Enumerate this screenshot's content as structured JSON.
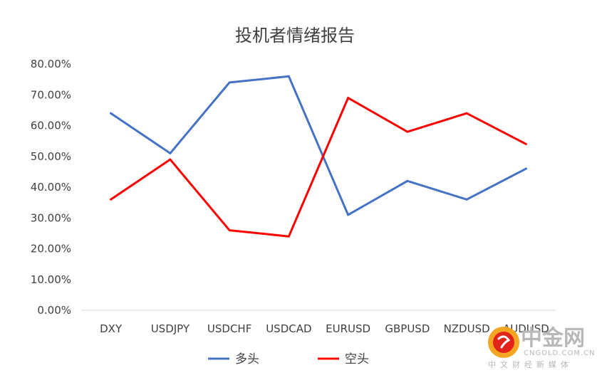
{
  "chart_data": {
    "type": "line",
    "title": "投机者情绪报告",
    "categories": [
      "DXY",
      "USDJPY",
      "USDCHF",
      "USDCAD",
      "EURUSD",
      "GBPUSD",
      "NZDUSD",
      "AUDUSD"
    ],
    "series": [
      {
        "name": "多头",
        "color": "#4472c4",
        "values": [
          64,
          51,
          74,
          76,
          31,
          42,
          36,
          46
        ]
      },
      {
        "name": "空头",
        "color": "#ff0000",
        "values": [
          36,
          49,
          26,
          24,
          69,
          58,
          64,
          54
        ]
      }
    ],
    "ylim": [
      0,
      80
    ],
    "yticks": [
      "0.00%",
      "10.00%",
      "20.00%",
      "30.00%",
      "40.00%",
      "50.00%",
      "60.00%",
      "70.00%",
      "80.00%"
    ],
    "grid": false,
    "legend": "bottom"
  },
  "watermark": {
    "brand": "中金网",
    "url": "CNGOLD.COM.CN",
    "tagline": "中文财经新媒体",
    "logo_icon": "cngold-logo-icon",
    "logo_colors": [
      "#f5a623",
      "#e2231a"
    ]
  }
}
